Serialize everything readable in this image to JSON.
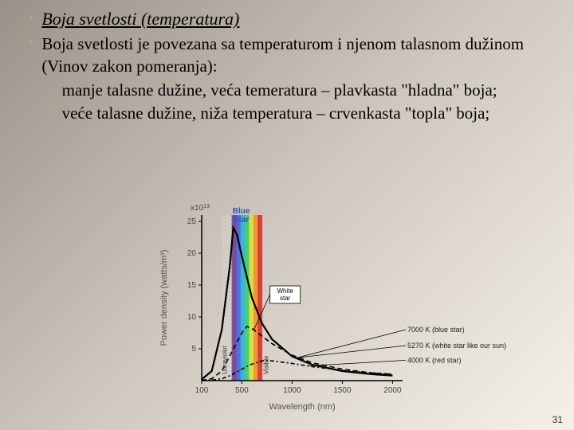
{
  "title": "Boja svetlosti (temperatura)",
  "main_text": "Boja svetlosti je povezana sa temperaturom i njenom talasnom dužinom (Vinov zakon pomeranja):",
  "sub1": "manje talasne dužine, veća temeratura – plavkasta \"hladna\" boja;",
  "sub2": "veće talasne dužine, niža temperatura – crvenkasta \"topla\" boja;",
  "page_num": "31",
  "chart": {
    "type": "line",
    "xlabel": "Wavelength (nm)",
    "ylabel": "Power density (watts/m³)",
    "y_prefix": "x10",
    "y_exp": "13",
    "x_range": [
      100,
      2100
    ],
    "y_range": [
      0,
      26
    ],
    "xticks": [
      100,
      500,
      1000,
      1500,
      2000
    ],
    "yticks": [
      5,
      10,
      15,
      20,
      25
    ],
    "visible_band": [
      400,
      700
    ],
    "spectrum_colors": [
      "#7030a0",
      "#4060d0",
      "#20b0e0",
      "#30d060",
      "#e0e030",
      "#f09020",
      "#e02020"
    ],
    "uv_fill": "#d8d4cc",
    "blue_star_label": "Blue Star",
    "blue_star_label_color": "#3050c0",
    "white_star_box": "White star",
    "curves": {
      "blue": {
        "color": "#000",
        "width": 2.2,
        "dash": "none",
        "label": "7000 K (blue star)",
        "peak_x": 414,
        "peak_y": 24,
        "points": [
          [
            100,
            0.2
          ],
          [
            200,
            1.5
          ],
          [
            300,
            8
          ],
          [
            380,
            18
          ],
          [
            414,
            24
          ],
          [
            450,
            23
          ],
          [
            500,
            19.5
          ],
          [
            600,
            13
          ],
          [
            700,
            9
          ],
          [
            800,
            6.5
          ],
          [
            1000,
            3.8
          ],
          [
            1200,
            2.5
          ],
          [
            1500,
            1.5
          ],
          [
            1800,
            1
          ],
          [
            2000,
            0.8
          ]
        ]
      },
      "white": {
        "color": "#000",
        "width": 1.6,
        "dash": "6,4",
        "label": "5270 K (white star like our sun)",
        "peak_x": 550,
        "peak_y": 8.5,
        "points": [
          [
            100,
            0.05
          ],
          [
            200,
            0.3
          ],
          [
            300,
            1.5
          ],
          [
            400,
            4.5
          ],
          [
            500,
            7.5
          ],
          [
            550,
            8.5
          ],
          [
            600,
            8.2
          ],
          [
            700,
            7
          ],
          [
            800,
            5.8
          ],
          [
            1000,
            4
          ],
          [
            1200,
            2.8
          ],
          [
            1500,
            1.8
          ],
          [
            1800,
            1.2
          ],
          [
            2000,
            1
          ]
        ]
      },
      "red": {
        "color": "#000",
        "width": 1.6,
        "dash": "5,3,2,3",
        "label": "4000 K (red star)",
        "peak_x": 725,
        "peak_y": 3.2,
        "points": [
          [
            100,
            0.02
          ],
          [
            200,
            0.08
          ],
          [
            300,
            0.3
          ],
          [
            400,
            0.9
          ],
          [
            500,
            1.8
          ],
          [
            600,
            2.6
          ],
          [
            725,
            3.2
          ],
          [
            800,
            3.1
          ],
          [
            1000,
            2.7
          ],
          [
            1200,
            2.2
          ],
          [
            1500,
            1.6
          ],
          [
            1800,
            1.2
          ],
          [
            2000,
            1
          ]
        ]
      }
    },
    "label_fontsize": 11,
    "tick_fontsize": 10,
    "axis_color": "#000",
    "plot_bg": "transparent"
  }
}
